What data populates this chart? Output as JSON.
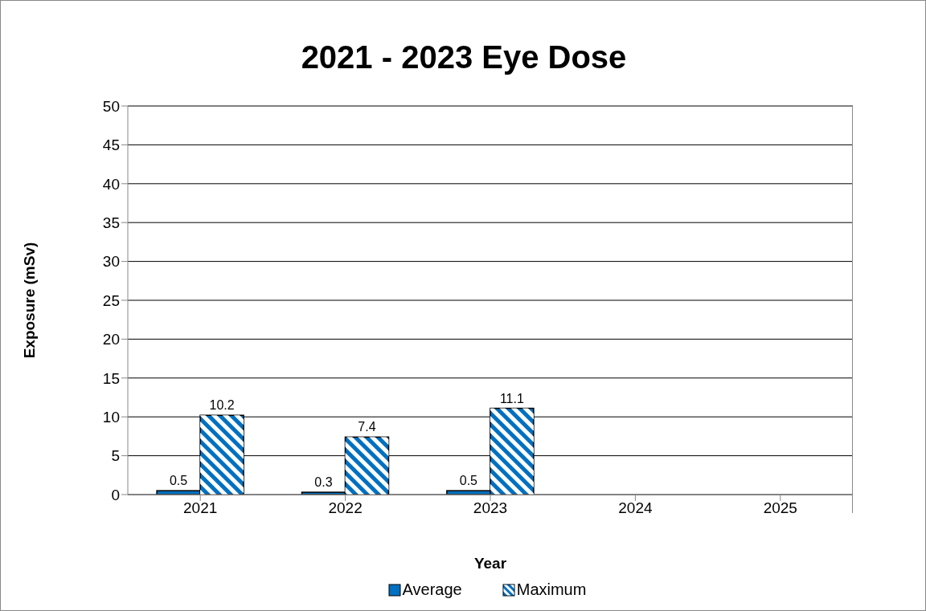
{
  "chart_data": {
    "type": "bar",
    "title": "2021 - 2023 Eye Dose",
    "xlabel": "Year",
    "ylabel": "Exposure (mSv)",
    "categories": [
      "2021",
      "2022",
      "2023",
      "2024",
      "2025"
    ],
    "series": [
      {
        "name": "Average",
        "color": "#0070c0",
        "values": [
          0.5,
          0.3,
          0.5,
          null,
          null
        ]
      },
      {
        "name": "Maximum",
        "color": "#0070c0",
        "values": [
          10.2,
          7.4,
          11.1,
          null,
          null
        ]
      }
    ],
    "ylim": [
      0,
      50
    ],
    "yticks": [
      0,
      5,
      10,
      15,
      20,
      25,
      30,
      35,
      40,
      45,
      50
    ],
    "grid": "y",
    "legend": "bottom",
    "data_labels": true
  }
}
